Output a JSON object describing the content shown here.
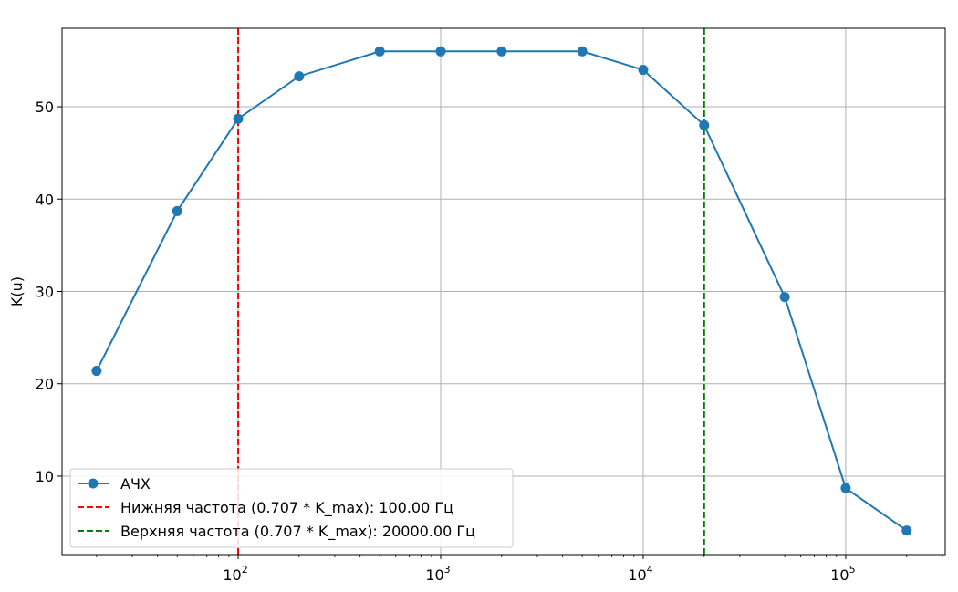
{
  "chart_data": {
    "type": "line",
    "xscale": "log",
    "xlim": [
      13.5,
      310000
    ],
    "ylim": [
      1.5,
      58.5
    ],
    "ylabel": "K(u)",
    "xlabel": "",
    "title": "",
    "grid": true,
    "legend_position": "lower-left",
    "x_ticks": [
      {
        "value": 100,
        "base": "10",
        "exp": "2"
      },
      {
        "value": 1000,
        "base": "10",
        "exp": "3"
      },
      {
        "value": 10000,
        "base": "10",
        "exp": "4"
      },
      {
        "value": 100000,
        "base": "10",
        "exp": "5"
      }
    ],
    "y_ticks": [
      {
        "value": 10,
        "label": "10"
      },
      {
        "value": 20,
        "label": "20"
      },
      {
        "value": 30,
        "label": "30"
      },
      {
        "value": 40,
        "label": "40"
      },
      {
        "value": 50,
        "label": "50"
      }
    ],
    "series": [
      {
        "name": "АЧХ",
        "color": "#1f77b4",
        "marker": "circle",
        "x": [
          20,
          50,
          100,
          200,
          500,
          1000,
          2000,
          5000,
          10000,
          20000,
          50000,
          100000,
          200000
        ],
        "y": [
          21.4,
          38.7,
          48.7,
          53.3,
          56.0,
          56.0,
          56.0,
          56.0,
          54.0,
          48.0,
          29.4,
          8.7,
          4.1
        ]
      }
    ],
    "vlines": [
      {
        "x": 100,
        "color": "#ff0000",
        "style": "dashed",
        "label": "Нижняя частота (0.707 * K_max): 100.00 Гц"
      },
      {
        "x": 20000,
        "color": "#008000",
        "style": "dashed",
        "label": "Верхняя частота (0.707 * K_max): 20000.00 Гц"
      }
    ]
  }
}
